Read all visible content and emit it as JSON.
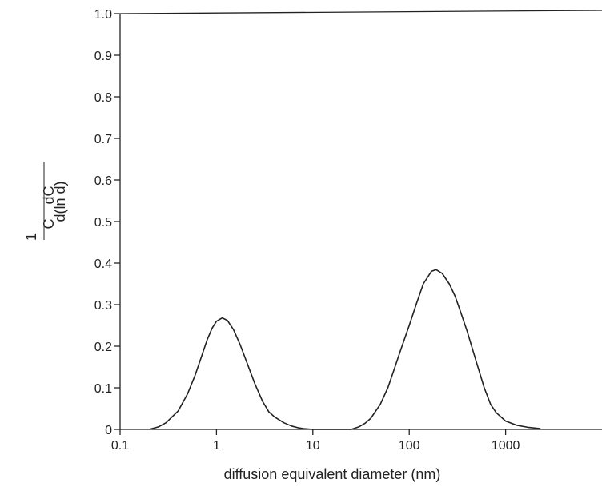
{
  "chart_data": {
    "type": "line",
    "title": "",
    "xlabel": "diffusion equivalent diameter (nm)",
    "ylabel": {
      "one": "1",
      "c": "C",
      "dc": "dC",
      "dlnd": "d(ln d)"
    },
    "x_scale": "log",
    "xlim": [
      0.1,
      10000
    ],
    "ylim": [
      0,
      1.0
    ],
    "x_ticks": [
      {
        "value": 0.1,
        "label": "0.1"
      },
      {
        "value": 1,
        "label": "1"
      },
      {
        "value": 10,
        "label": "10"
      },
      {
        "value": 100,
        "label": "100"
      },
      {
        "value": 1000,
        "label": "1000"
      }
    ],
    "y_ticks": [
      {
        "value": 0,
        "label": "0"
      },
      {
        "value": 0.1,
        "label": "0.1"
      },
      {
        "value": 0.2,
        "label": "0.2"
      },
      {
        "value": 0.3,
        "label": "0.3"
      },
      {
        "value": 0.4,
        "label": "0.4"
      },
      {
        "value": 0.5,
        "label": "0.5"
      },
      {
        "value": 0.6,
        "label": "0.6"
      },
      {
        "value": 0.7,
        "label": "0.7"
      },
      {
        "value": 0.8,
        "label": "0.8"
      },
      {
        "value": 0.9,
        "label": "0.9"
      },
      {
        "value": 1.0,
        "label": "1.0"
      }
    ],
    "grid": false,
    "series": [
      {
        "points": [
          [
            0.2,
            0.0
          ],
          [
            0.25,
            0.006
          ],
          [
            0.3,
            0.016
          ],
          [
            0.4,
            0.044
          ],
          [
            0.5,
            0.085
          ],
          [
            0.6,
            0.13
          ],
          [
            0.7,
            0.175
          ],
          [
            0.8,
            0.215
          ],
          [
            0.9,
            0.243
          ],
          [
            1.0,
            0.26
          ],
          [
            1.15,
            0.268
          ],
          [
            1.3,
            0.262
          ],
          [
            1.5,
            0.24
          ],
          [
            1.75,
            0.205
          ],
          [
            2.0,
            0.17
          ],
          [
            2.5,
            0.11
          ],
          [
            3.0,
            0.068
          ],
          [
            3.5,
            0.042
          ],
          [
            4.0,
            0.03
          ],
          [
            5.0,
            0.016
          ],
          [
            6.0,
            0.008
          ],
          [
            7.0,
            0.004
          ],
          [
            8.0,
            0.002
          ],
          [
            10.0,
            0.0
          ],
          [
            25.0,
            0.0
          ],
          [
            30.0,
            0.006
          ],
          [
            35.0,
            0.015
          ],
          [
            40.0,
            0.027
          ],
          [
            50.0,
            0.06
          ],
          [
            60.0,
            0.1
          ],
          [
            70.0,
            0.145
          ],
          [
            80.0,
            0.185
          ],
          [
            100.0,
            0.25
          ],
          [
            120.0,
            0.305
          ],
          [
            140.0,
            0.35
          ],
          [
            170.0,
            0.38
          ],
          [
            190.0,
            0.384
          ],
          [
            220.0,
            0.375
          ],
          [
            260.0,
            0.35
          ],
          [
            300.0,
            0.32
          ],
          [
            350.0,
            0.275
          ],
          [
            400.0,
            0.235
          ],
          [
            500.0,
            0.16
          ],
          [
            600.0,
            0.1
          ],
          [
            700.0,
            0.06
          ],
          [
            800.0,
            0.04
          ],
          [
            1000.0,
            0.02
          ],
          [
            1300.0,
            0.01
          ],
          [
            1700.0,
            0.005
          ],
          [
            2300.0,
            0.002
          ]
        ]
      }
    ]
  },
  "colors": {
    "line": "#222222",
    "axis": "#222222",
    "background": "#ffffff"
  }
}
